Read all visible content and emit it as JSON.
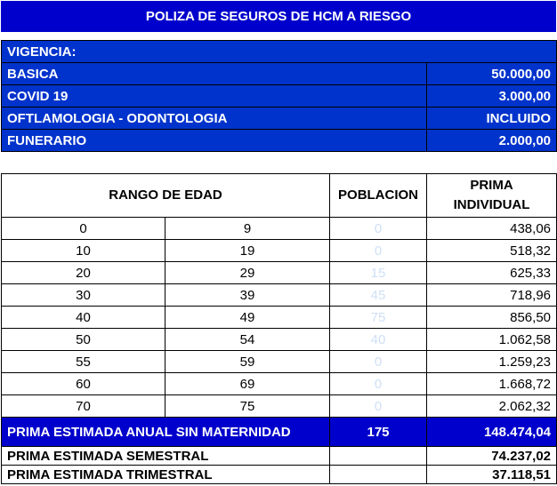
{
  "title": "POLIZA DE SEGUROS DE HCM A RIESGO",
  "coverage": {
    "vigencia_label": "VIGENCIA:",
    "items": [
      {
        "label": "BASICA",
        "value": "50.000,00"
      },
      {
        "label": "COVID 19",
        "value": "3.000,00"
      },
      {
        "label": "OFTLAMOLOGIA - ODONTOLOGIA",
        "value": "INCLUIDO"
      },
      {
        "label": "FUNERARIO",
        "value": "2.000,00"
      }
    ]
  },
  "rates": {
    "headers": {
      "range": "RANGO DE EDAD",
      "population": "POBLACION",
      "premium": "PRIMA INDIVIDUAL"
    },
    "rows": [
      {
        "from": "0",
        "to": "9",
        "population": "0",
        "premium": "438,06"
      },
      {
        "from": "10",
        "to": "19",
        "population": "0",
        "premium": "518,32"
      },
      {
        "from": "20",
        "to": "29",
        "population": "15",
        "premium": "625,33"
      },
      {
        "from": "30",
        "to": "39",
        "population": "45",
        "premium": "718,96"
      },
      {
        "from": "40",
        "to": "49",
        "population": "75",
        "premium": "856,50"
      },
      {
        "from": "50",
        "to": "54",
        "population": "40",
        "premium": "1.062,58"
      },
      {
        "from": "55",
        "to": "59",
        "population": "0",
        "premium": "1.259,23"
      },
      {
        "from": "60",
        "to": "69",
        "population": "0",
        "premium": "1.668,72"
      },
      {
        "from": "70",
        "to": "75",
        "population": "0",
        "premium": "2.062,32"
      }
    ]
  },
  "totals": {
    "annual_label": "PRIMA ESTIMADA ANUAL SIN MATERNIDAD",
    "annual_population": "175",
    "annual_value": "148.474,04",
    "semester_label": "PRIMA ESTIMADA SEMESTRAL",
    "semester_value": "74.237,02",
    "quarter_label": "PRIMA ESTIMADA TRIMESTRAL",
    "quarter_value": "37.118,51"
  }
}
